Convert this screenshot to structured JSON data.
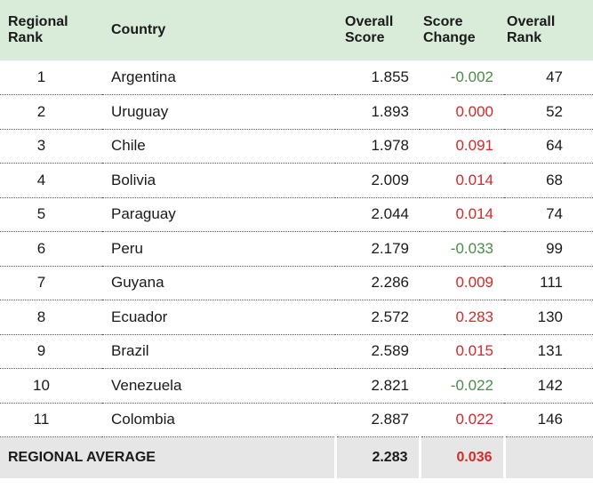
{
  "headers": {
    "regional_rank": [
      "Regional",
      "Rank"
    ],
    "country": "Country",
    "overall_score": [
      "Overall",
      "Score"
    ],
    "score_change": [
      "Score",
      "Change"
    ],
    "overall_rank": [
      "Overall",
      "Rank"
    ]
  },
  "rows": [
    {
      "rank": "1",
      "country": "Argentina",
      "score": "1.855",
      "change": "-0.002",
      "overall_rank": "47",
      "change_color": "#4a8c4a"
    },
    {
      "rank": "2",
      "country": "Uruguay",
      "score": "1.893",
      "change": "0.000",
      "overall_rank": "52",
      "change_color": "#d42a2a"
    },
    {
      "rank": "3",
      "country": "Chile",
      "score": "1.978",
      "change": "0.091",
      "overall_rank": "64",
      "change_color": "#d42a2a"
    },
    {
      "rank": "4",
      "country": "Bolivia",
      "score": "2.009",
      "change": "0.014",
      "overall_rank": "68",
      "change_color": "#d42a2a"
    },
    {
      "rank": "5",
      "country": "Paraguay",
      "score": "2.044",
      "change": "0.014",
      "overall_rank": "74",
      "change_color": "#d42a2a"
    },
    {
      "rank": "6",
      "country": "Peru",
      "score": "2.179",
      "change": "-0.033",
      "overall_rank": "99",
      "change_color": "#4a8c4a"
    },
    {
      "rank": "7",
      "country": "Guyana",
      "score": "2.286",
      "change": "0.009",
      "overall_rank": "111",
      "change_color": "#d42a2a"
    },
    {
      "rank": "8",
      "country": "Ecuador",
      "score": "2.572",
      "change": "0.283",
      "overall_rank": "130",
      "change_color": "#d42a2a"
    },
    {
      "rank": "9",
      "country": "Brazil",
      "score": "2.589",
      "change": "0.015",
      "overall_rank": "131",
      "change_color": "#d42a2a"
    },
    {
      "rank": "10",
      "country": "Venezuela",
      "score": "2.821",
      "change": "-0.022",
      "overall_rank": "142",
      "change_color": "#4a8c4a"
    },
    {
      "rank": "11",
      "country": "Colombia",
      "score": "2.887",
      "change": "0.022",
      "overall_rank": "146",
      "change_color": "#d42a2a"
    }
  ],
  "average": {
    "label": "REGIONAL AVERAGE",
    "score": "2.283",
    "change": "0.036",
    "change_color": "#d42a2a"
  },
  "colors": {
    "header_bg": "#d9ecd9",
    "footer_bg": "#e6e6e6",
    "decrease": "#4a8c4a",
    "increase": "#d42a2a"
  }
}
